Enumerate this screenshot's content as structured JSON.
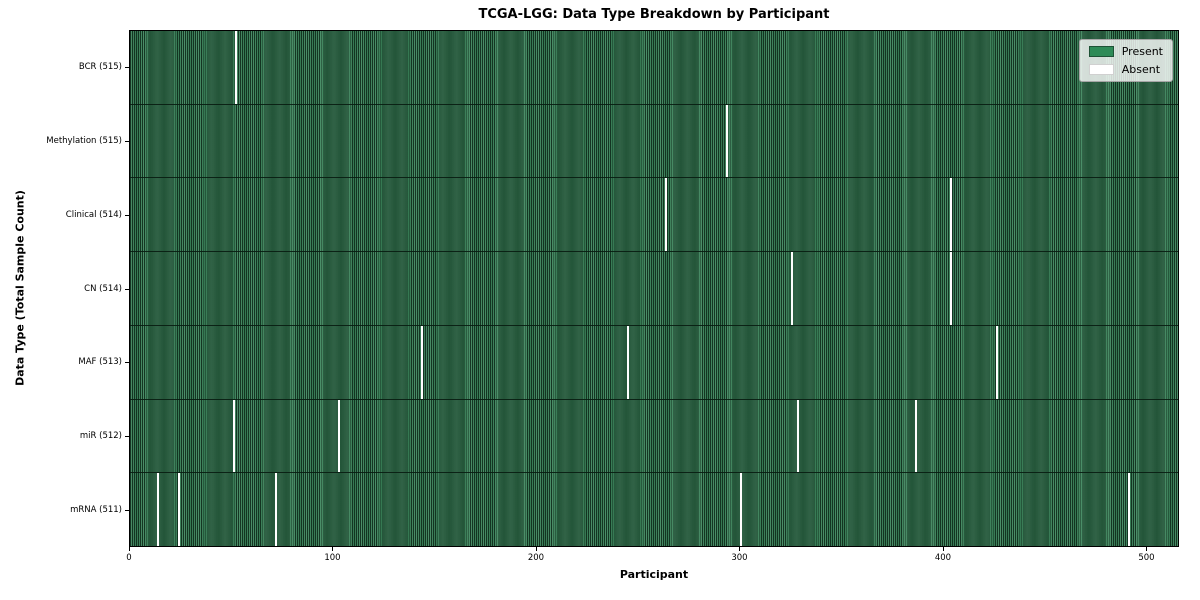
{
  "chart_data": {
    "type": "heatmap",
    "title": "TCGA-LGG: Data Type Breakdown by Participant",
    "xlabel": "Participant",
    "ylabel": "Data Type (Total Sample Count)",
    "n_participants": 516,
    "x_axis": {
      "ticks": [
        0,
        100,
        200,
        300,
        400,
        500
      ],
      "range": [
        0,
        516
      ]
    },
    "grid": false,
    "legend": {
      "position": "upper right",
      "entries": [
        {
          "label": "Present",
          "color": "#2e8b57",
          "edge": "#1e5236"
        },
        {
          "label": "Absent",
          "color": "#ffffff",
          "edge": "#d0d0d0"
        }
      ]
    },
    "rows": [
      {
        "label": "BCR (515)",
        "data_type": "BCR",
        "sample_count": 515,
        "absent_participants": [
          52
        ]
      },
      {
        "label": "Methylation (515)",
        "data_type": "Methylation",
        "sample_count": 515,
        "absent_participants": [
          294
        ]
      },
      {
        "label": "Clinical (514)",
        "data_type": "Clinical",
        "sample_count": 514,
        "absent_participants": [
          264,
          404
        ]
      },
      {
        "label": "CN (514)",
        "data_type": "CN",
        "sample_count": 514,
        "absent_participants": [
          326,
          404
        ]
      },
      {
        "label": "MAF (513)",
        "data_type": "MAF",
        "sample_count": 513,
        "absent_participants": [
          144,
          245,
          427
        ]
      },
      {
        "label": "miR (512)",
        "data_type": "miR",
        "sample_count": 512,
        "absent_participants": [
          51,
          103,
          329,
          387
        ]
      },
      {
        "label": "mRNA (511)",
        "data_type": "mRNA",
        "sample_count": 511,
        "absent_participants": [
          14,
          24,
          72,
          301,
          492
        ]
      }
    ],
    "colors": {
      "present": "#2e8b57",
      "present_edge": "#16402a",
      "absent": "#ffffff",
      "plot_border": "#000000",
      "legend_border": "#a6a6a6"
    }
  }
}
